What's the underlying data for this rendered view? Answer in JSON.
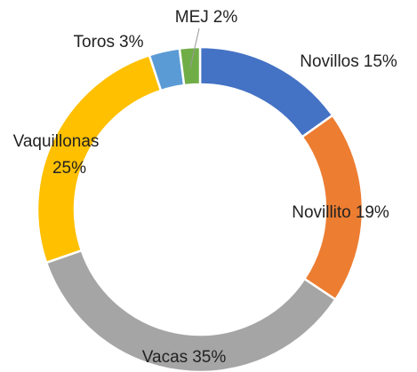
{
  "chart_data": {
    "type": "donut",
    "categories": [
      "Novillos",
      "Novillito",
      "Vacas",
      "Vaquillonas",
      "Toros",
      "MEJ"
    ],
    "values": [
      15,
      19,
      35,
      25,
      3,
      2
    ],
    "value_labels": [
      "15%",
      "19%",
      "35%",
      "25%",
      "3%",
      "2%"
    ],
    "colors": [
      "#4472c4",
      "#ed7d31",
      "#a5a5a5",
      "#ffc000",
      "#5b9bd5",
      "#70ad47"
    ]
  }
}
